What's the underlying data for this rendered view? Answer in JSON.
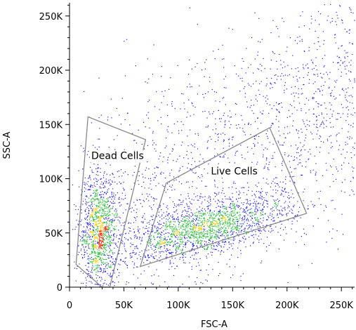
{
  "chart_data": {
    "type": "scatter",
    "plot_style": "flow cytometry density dot plot",
    "xlabel": "FSC-A",
    "ylabel": "SSC-A",
    "xlim": [
      0,
      262144
    ],
    "ylim": [
      0,
      262144
    ],
    "x_ticks": [
      {
        "value": 0,
        "label": "0"
      },
      {
        "value": 50000,
        "label": "50K"
      },
      {
        "value": 100000,
        "label": "100K"
      },
      {
        "value": 150000,
        "label": "150K"
      },
      {
        "value": 200000,
        "label": "200K"
      },
      {
        "value": 250000,
        "label": "250K"
      }
    ],
    "y_ticks": [
      {
        "value": 0,
        "label": "0"
      },
      {
        "value": 50000,
        "label": "50K"
      },
      {
        "value": 100000,
        "label": "100K"
      },
      {
        "value": 150000,
        "label": "150K"
      },
      {
        "value": 200000,
        "label": "200K"
      },
      {
        "value": 250000,
        "label": "250K"
      }
    ],
    "grid": false,
    "colors": {
      "low_density": "#1a1aff",
      "medium_density": "#22bb33",
      "high_density": "#ffcc00",
      "peak_density": "#ff2200",
      "gate_outline": "#888888"
    },
    "populations": [
      {
        "name": "dead_cluster",
        "center": [
          27000,
          52000
        ],
        "spread": [
          9000,
          26000
        ],
        "count": 1200
      },
      {
        "name": "live_cluster",
        "center": [
          125000,
          55000
        ],
        "spread": [
          38000,
          12000
        ],
        "count": 1800
      },
      {
        "name": "background",
        "range_x": [
          10000,
          262000
        ],
        "range_y": [
          20000,
          255000
        ],
        "count": 1800
      }
    ],
    "gates": [
      {
        "label": "Dead Cells",
        "polygon": [
          [
            17000,
            157000
          ],
          [
            70000,
            136000
          ],
          [
            37000,
            0
          ],
          [
            30000,
            0
          ],
          [
            6000,
            21000
          ]
        ]
      },
      {
        "label": "Live Cells",
        "polygon": [
          [
            65000,
            19000
          ],
          [
            218000,
            68000
          ],
          [
            184000,
            147000
          ],
          [
            89000,
            96000
          ]
        ]
      }
    ]
  }
}
